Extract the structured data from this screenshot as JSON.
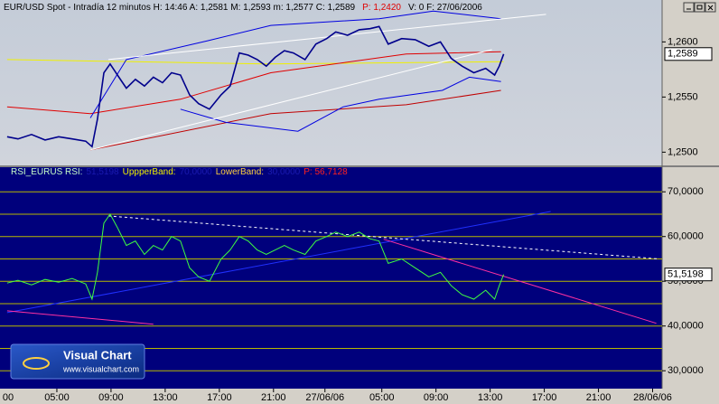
{
  "header": {
    "parts": [
      {
        "text": "EUR/USD Spot - Intradía 12 minutos  H: 14:46  A: 1,2581  M: 1,2593  m: 1,2577  C: 1,2589",
        "color": "#000000"
      },
      {
        "text": "P: 1,2420",
        "color": "#e00000"
      },
      {
        "text": "V: 0  F: 27/06/2006",
        "color": "#000000"
      }
    ]
  },
  "logo": {
    "name": "Visual Chart",
    "url": "www.visualchart.com"
  },
  "chart_data": [
    {
      "type": "line",
      "ylim": [
        1.2488,
        1.2638
      ],
      "xlim": [
        0.8,
        49.7
      ],
      "yticks": [
        {
          "value": 1.25,
          "label": "1,2500"
        },
        {
          "value": 1.255,
          "label": "1,2550"
        },
        {
          "value": 1.26,
          "label": "1,2600"
        }
      ],
      "last_label": {
        "value": 1.2589,
        "label": "1,2589"
      },
      "series": [
        {
          "color": "#f0f000",
          "x": [
            1.33,
            20.47,
            38
          ],
          "values": [
            1.2584,
            1.258,
            1.2582
          ]
        },
        {
          "color": "#e00000",
          "x": [
            1.33,
            7.47,
            14.13,
            20.8,
            30.8,
            37.8
          ],
          "values": [
            1.2541,
            1.2535,
            1.2548,
            1.2572,
            1.2589,
            1.2591
          ]
        },
        {
          "color": "#c00000",
          "x": [
            7.47,
            20.8,
            30.8,
            37.8
          ],
          "values": [
            1.2502,
            1.2535,
            1.2543,
            1.2556
          ]
        },
        {
          "color": "#0000e0",
          "x": [
            7.47,
            10.13,
            16.13,
            20.8,
            28.8,
            32.8,
            37.8
          ],
          "values": [
            1.2531,
            1.2584,
            1.2601,
            1.2615,
            1.2621,
            1.2628,
            1.2621
          ]
        },
        {
          "color": "#0000e0",
          "x": [
            14.13,
            17.47,
            22.8,
            26.13,
            28.8,
            33.47,
            35.47,
            37.8
          ],
          "values": [
            1.2539,
            1.2527,
            1.2519,
            1.2541,
            1.2548,
            1.2556,
            1.2568,
            1.2564
          ]
        },
        {
          "color": "#ffffff",
          "x": [
            8.8,
            41.13
          ],
          "values": [
            1.2584,
            1.2625
          ]
        },
        {
          "color": "#ffffff",
          "x": [
            7.47,
            37.13
          ],
          "values": [
            1.2502,
            1.2593
          ]
        },
        {
          "color": "#00008c",
          "width": 1.6,
          "x": [
            1.33,
            2.13,
            3.13,
            4.13,
            5.13,
            6.13,
            7.13,
            7.6,
            8,
            8.47,
            8.93,
            9.47,
            10.13,
            10.8,
            11.47,
            12.13,
            12.8,
            13.47,
            14.13,
            14.8,
            15.47,
            16.27,
            17.13,
            17.8,
            18.47,
            19.13,
            19.8,
            20.47,
            21.13,
            21.8,
            22.47,
            23.33,
            24.13,
            24.93,
            25.6,
            26.47,
            27.33,
            28.13,
            28.8,
            29.47,
            30.47,
            31.47,
            32.47,
            33.33,
            34.13,
            34.93,
            35.8,
            36.67,
            37.33,
            37.67,
            38
          ],
          "values": [
            1.2514,
            1.2512,
            1.2516,
            1.2511,
            1.2514,
            1.2512,
            1.251,
            1.2505,
            1.253,
            1.2572,
            1.258,
            1.257,
            1.2558,
            1.2566,
            1.256,
            1.2568,
            1.2563,
            1.2572,
            1.257,
            1.2552,
            1.2544,
            1.2539,
            1.2552,
            1.256,
            1.259,
            1.2588,
            1.2584,
            1.2578,
            1.2586,
            1.2592,
            1.259,
            1.2584,
            1.2598,
            1.2603,
            1.2609,
            1.2606,
            1.2611,
            1.2612,
            1.2614,
            1.2598,
            1.2603,
            1.2602,
            1.2596,
            1.26,
            1.2585,
            1.2578,
            1.2572,
            1.2576,
            1.257,
            1.2578,
            1.2589
          ]
        }
      ]
    },
    {
      "type": "line",
      "title_parts": [
        {
          "text": "RSI_EURUS RSI:",
          "color": "#c8ffc8"
        },
        {
          "text": "51,5198",
          "color": "#1a1ab0"
        },
        {
          "text": "UppperBand:",
          "color": "#f0f000"
        },
        {
          "text": "70,0000",
          "color": "#1a1ab0"
        },
        {
          "text": "LowerBand:",
          "color": "#ffd040"
        },
        {
          "text": "30,0000",
          "color": "#1a1ab0"
        },
        {
          "text": "P: 56,7128",
          "color": "#ff2020"
        }
      ],
      "ylim": [
        26,
        75.5
      ],
      "xlim": [
        0.8,
        49.7
      ],
      "yticks": [
        {
          "value": 30,
          "label": "30,0000"
        },
        {
          "value": 40,
          "label": "40,0000"
        },
        {
          "value": 50,
          "label": "50,0000"
        },
        {
          "value": 60,
          "label": "60,0000"
        },
        {
          "value": 70,
          "label": "70,0000"
        }
      ],
      "hlines": [
        30,
        35,
        40,
        45,
        50,
        55,
        60,
        65,
        70
      ],
      "hline_color": "#b8b800",
      "last_label": {
        "value": 51.5198,
        "label": "51,5198"
      },
      "xticks": [
        {
          "value": 0,
          "label": "00"
        },
        {
          "value": 5,
          "label": "05:00"
        },
        {
          "value": 9,
          "label": "09:00"
        },
        {
          "value": 13,
          "label": "13:00"
        },
        {
          "value": 17,
          "label": "17:00"
        },
        {
          "value": 21,
          "label": "21:00"
        },
        {
          "value": 24.8,
          "label": "27/06/06"
        },
        {
          "value": 29,
          "label": "05:00"
        },
        {
          "value": 33,
          "label": "09:00"
        },
        {
          "value": 37,
          "label": "13:00"
        },
        {
          "value": 41,
          "label": "17:00"
        },
        {
          "value": 45,
          "label": "21:00"
        },
        {
          "value": 49,
          "label": "28/06/06"
        }
      ],
      "series": [
        {
          "color": "#2030ff",
          "x": [
            1.33,
            41.47
          ],
          "values": [
            43,
            65.6
          ]
        },
        {
          "color": "#ffffff",
          "dash": true,
          "x": [
            8.8,
            49.47
          ],
          "values": [
            64.6,
            55
          ]
        },
        {
          "color": "#ff30a0",
          "x": [
            29.13,
            49.27
          ],
          "values": [
            59.4,
            40.6
          ]
        },
        {
          "color": "#ff30a0",
          "x": [
            1.33,
            12.13
          ],
          "values": [
            43.4,
            40.4
          ]
        },
        {
          "color": "#40ff40",
          "x": [
            1.33,
            2.13,
            3.13,
            4.13,
            5.13,
            6.13,
            7.13,
            7.6,
            8,
            8.47,
            8.93,
            9.47,
            10.13,
            10.8,
            11.47,
            12.13,
            12.8,
            13.47,
            14.13,
            14.8,
            15.47,
            16.27,
            17.13,
            17.8,
            18.47,
            19.13,
            19.8,
            20.47,
            21.13,
            21.8,
            22.47,
            23.33,
            24.13,
            24.93,
            25.6,
            26.47,
            27.33,
            28.13,
            28.8,
            29.47,
            30.47,
            31.47,
            32.47,
            33.33,
            34.13,
            34.93,
            35.8,
            36.67,
            37.33,
            37.67,
            38
          ],
          "values": [
            49.6,
            50.2,
            49.2,
            50.4,
            49.8,
            50.6,
            49.4,
            46,
            52,
            63,
            65,
            62,
            58,
            59,
            56,
            58,
            57,
            60,
            59,
            53,
            51,
            50,
            55,
            57,
            60,
            59,
            57,
            56,
            57,
            58,
            57,
            56,
            59,
            60,
            61,
            60,
            61,
            59.5,
            59,
            54,
            55,
            53,
            51,
            52,
            49,
            47,
            46,
            48,
            46,
            49,
            51.5198
          ]
        }
      ]
    }
  ]
}
